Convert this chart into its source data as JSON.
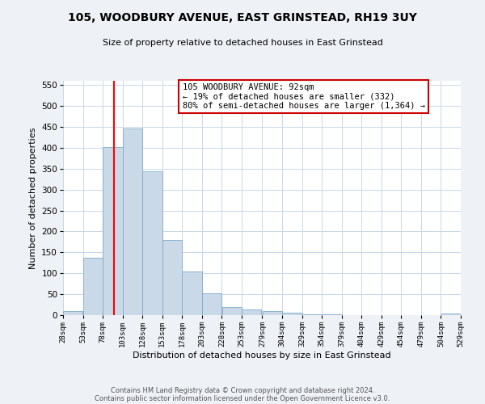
{
  "title": "105, WOODBURY AVENUE, EAST GRINSTEAD, RH19 3UY",
  "subtitle": "Size of property relative to detached houses in East Grinstead",
  "xlabel": "Distribution of detached houses by size in East Grinstead",
  "ylabel": "Number of detached properties",
  "bin_edges": [
    28,
    53,
    78,
    103,
    128,
    153,
    178,
    203,
    228,
    253,
    279,
    304,
    329,
    354,
    379,
    404,
    429,
    454,
    479,
    504,
    529
  ],
  "bin_labels": [
    "28sqm",
    "53sqm",
    "78sqm",
    "103sqm",
    "128sqm",
    "153sqm",
    "178sqm",
    "203sqm",
    "228sqm",
    "253sqm",
    "279sqm",
    "304sqm",
    "329sqm",
    "354sqm",
    "379sqm",
    "404sqm",
    "429sqm",
    "454sqm",
    "479sqm",
    "504sqm",
    "529sqm"
  ],
  "bar_heights": [
    10,
    137,
    401,
    447,
    343,
    180,
    105,
    52,
    20,
    14,
    10,
    5,
    2,
    1,
    0,
    0,
    0,
    0,
    0,
    3
  ],
  "bar_color": "#c9d9e8",
  "bar_edgecolor": "#7eaac8",
  "red_line_x": 92,
  "annotation_title": "105 WOODBURY AVENUE: 92sqm",
  "annotation_line1": "← 19% of detached houses are smaller (332)",
  "annotation_line2": "80% of semi-detached houses are larger (1,364) →",
  "annotation_box_color": "#ffffff",
  "annotation_box_edgecolor": "#cc0000",
  "ylim": [
    0,
    560
  ],
  "yticks": [
    0,
    50,
    100,
    150,
    200,
    250,
    300,
    350,
    400,
    450,
    500,
    550
  ],
  "footer1": "Contains HM Land Registry data © Crown copyright and database right 2024.",
  "footer2": "Contains public sector information licensed under the Open Government Licence v3.0.",
  "background_color": "#eef2f7",
  "plot_background_color": "#ffffff",
  "grid_color": "#c8d8e8"
}
